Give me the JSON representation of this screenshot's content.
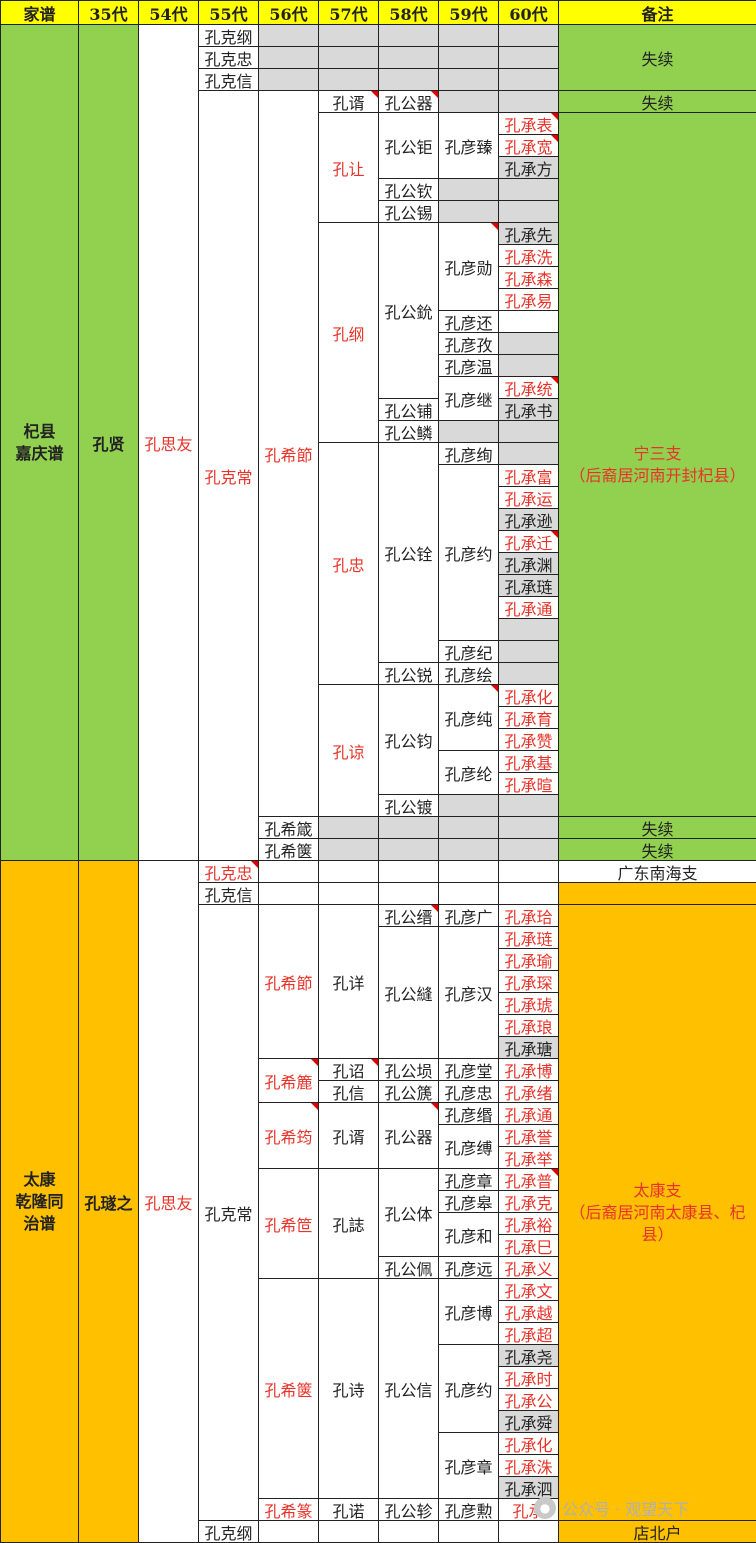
{
  "header": [
    "家谱",
    "35代",
    "54代",
    "55代",
    "56代",
    "57代",
    "58代",
    "59代",
    "60代",
    "备注"
  ],
  "colors": {
    "green": "#92d050",
    "orange": "#ffc000",
    "yellow": "#ffff00",
    "gray": "#d9d9d9",
    "red_text": "#e8332a"
  },
  "section1": {
    "pedigree": "杞县\n嘉庆谱",
    "gen35": "孔贤",
    "gen54": "孔思友",
    "gen55": [
      "孔克纲",
      "孔克忠",
      "孔克信",
      "孔克常"
    ],
    "gen56": [
      "孔希節",
      "孔希箴",
      "孔希箧"
    ],
    "gen57": [
      "孔谞",
      "孔让",
      "孔纲",
      "孔忠",
      "孔谅"
    ],
    "gen58": [
      "孔公器",
      "孔公钜",
      "孔公钦",
      "孔公锡",
      "孔公鈗",
      "孔公铺",
      "孔公鳞",
      "孔公铨",
      "孔公锐",
      "孔公钧",
      "孔公镀"
    ],
    "gen59": [
      "孔彦臻",
      "孔彦勋",
      "孔彦还",
      "孔彦孜",
      "孔彦温",
      "孔彦继",
      "孔彦绚",
      "孔彦约",
      "孔彦纪",
      "孔彦绘",
      "孔彦纯",
      "孔彦纶"
    ],
    "gen60": [
      "孔承表",
      "孔承宽",
      "孔承方",
      "孔承先",
      "孔承洗",
      "孔承森",
      "孔承易",
      "孔承统",
      "孔承书",
      "孔承富",
      "孔承运",
      "孔承逊",
      "孔承迁",
      "孔承渊",
      "孔承琏",
      "孔承通",
      "孔承化",
      "孔承育",
      "孔承赞",
      "孔承基",
      "孔承暄"
    ],
    "notes": [
      "失续",
      "失续",
      "宁三支\n（后裔居河南开封杞县）",
      "失续",
      "失续"
    ]
  },
  "section2": {
    "pedigree": "太康\n乾隆同\n治谱",
    "gen35": "孔璲之",
    "gen54": "孔思友",
    "gen55": [
      "孔克忠",
      "孔克信",
      "孔克常",
      "孔克纲"
    ],
    "gen56": [
      "孔希節",
      "孔希簏",
      "孔希筠",
      "孔希笸",
      "孔希箧",
      "孔希篆"
    ],
    "gen57": [
      "孔详",
      "孔诏",
      "孔信",
      "孔谞",
      "孔誌",
      "孔诗",
      "孔诺"
    ],
    "gen58": [
      "孔公缙",
      "孔公縫",
      "孔公埙",
      "孔公篪",
      "孔公器",
      "孔公体",
      "孔公佩",
      "孔公信",
      "孔公轸"
    ],
    "gen59": [
      "孔彦广",
      "孔彦汉",
      "孔彦堂",
      "孔彦忠",
      "孔彦缗",
      "孔彦缚",
      "孔彦章",
      "孔彦皋",
      "孔彦和",
      "孔彦远",
      "孔彦博",
      "孔彦约",
      "孔彦章",
      "孔彦勲"
    ],
    "gen60": [
      "孔承珨",
      "孔承琏",
      "孔承瑜",
      "孔承琛",
      "孔承琥",
      "孔承琅",
      "孔承瑭",
      "孔承博",
      "孔承绪",
      "孔承通",
      "孔承誉",
      "孔承举",
      "孔承普",
      "孔承克",
      "孔承裕",
      "孔承巳",
      "孔承义",
      "孔承文",
      "孔承越",
      "孔承超",
      "孔承尧",
      "孔承时",
      "孔承公",
      "孔承舜",
      "孔承化",
      "孔承洙",
      "孔承泗",
      "孔承"
    ],
    "notes": [
      "广东南海支",
      "太康支\n（后裔居河南太康县、杞县）",
      "店北户"
    ]
  },
  "watermark": {
    "icon": "wechat-icon",
    "text": "公众号 · 观望天下"
  }
}
